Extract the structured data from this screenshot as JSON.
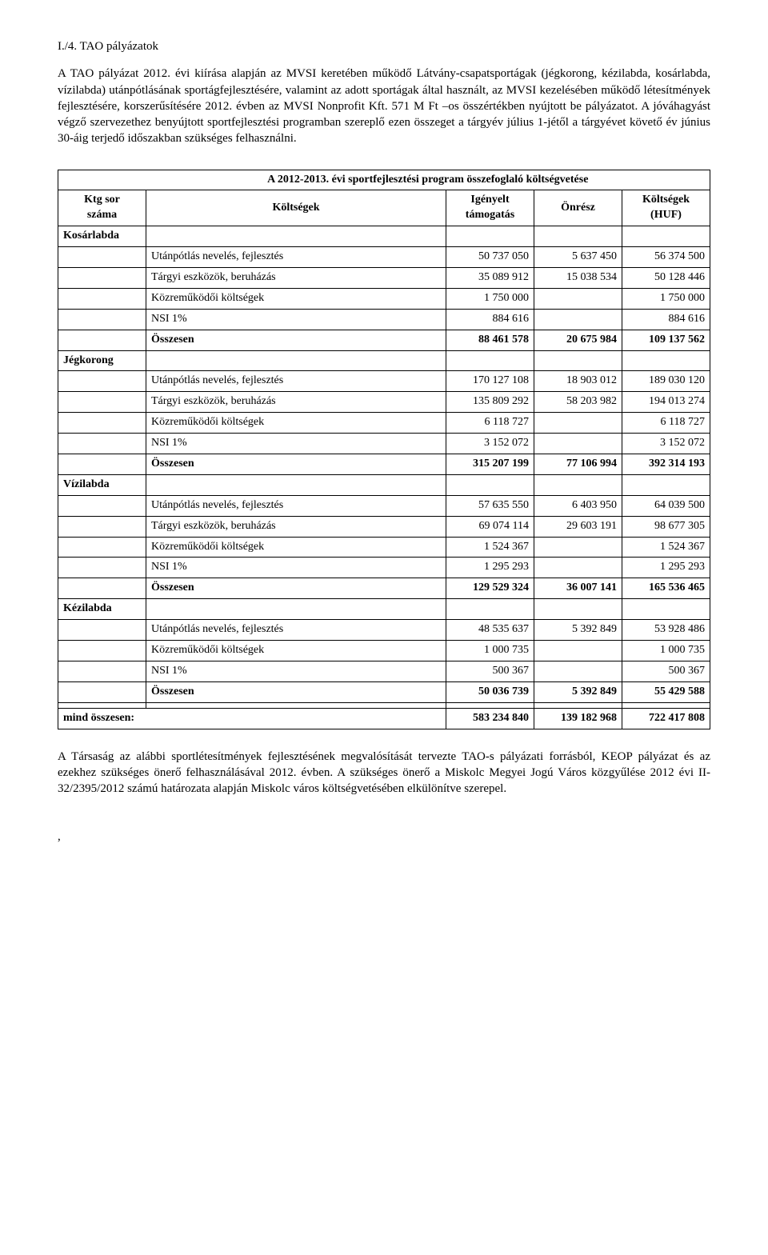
{
  "section_number": "I./4.  TAO pályázatok",
  "intro_paragraphs": [
    "A TAO pályázat 2012. évi kiírása alapján az MVSI keretében működő Látvány-csapatsportágak (jégkorong, kézilabda, kosárlabda, vízilabda) utánpótlásának sportágfejlesztésére, valamint az adott sportágak által használt, az  MVSI kezelésében működő létesítmények fejlesztésére, korszerűsítésére 2012. évben az MVSI Nonprofit Kft. 571 M Ft –os összértékben nyújtott be pályázatot. A jóváhagyást végző szervezethez benyújtott sportfejlesztési programban szereplő ezen összeget a tárgyév július 1-jétől a tárgyévet követő év június 30-áig terjedő időszakban szükséges felhasználni."
  ],
  "table": {
    "title": "A 2012-2013. évi sportfejlesztési program összefoglaló költségvetése",
    "col_first_header_line1": "Ktg sor",
    "col_first_header_line2": "száma",
    "col_headers": [
      "Költségek",
      "Igényelt támogatás",
      "Önrész",
      "Költségek (HUF)"
    ],
    "sports": [
      {
        "name": "Kosárlabda",
        "rows": [
          {
            "label": "Utánpótlás nevelés, fejlesztés",
            "v1": "50 737 050",
            "v2": "5 637 450",
            "v3": "56 374 500"
          },
          {
            "label": "Tárgyi eszközök, beruházás",
            "v1": "35 089 912",
            "v2": "15 038 534",
            "v3": "50 128 446"
          },
          {
            "label": "Közreműködői költségek",
            "v1": "1 750 000",
            "v2": "",
            "v3": "1 750 000"
          },
          {
            "label": "NSI 1%",
            "v1": "884 616",
            "v2": "",
            "v3": "884 616"
          }
        ],
        "summary": {
          "label": "Összesen",
          "v1": "88 461 578",
          "v2": "20 675 984",
          "v3": "109 137 562"
        }
      },
      {
        "name": "Jégkorong",
        "rows": [
          {
            "label": "Utánpótlás nevelés, fejlesztés",
            "v1": "170 127 108",
            "v2": "18 903 012",
            "v3": "189 030 120"
          },
          {
            "label": "Tárgyi eszközök, beruházás",
            "v1": "135 809 292",
            "v2": "58 203 982",
            "v3": "194 013 274"
          },
          {
            "label": "Közreműködői költségek",
            "v1": "6 118 727",
            "v2": "",
            "v3": "6 118 727"
          },
          {
            "label": "NSI 1%",
            "v1": "3 152 072",
            "v2": "",
            "v3": "3 152 072"
          }
        ],
        "summary": {
          "label": "Összesen",
          "v1": "315 207 199",
          "v2": "77 106 994",
          "v3": "392 314 193"
        }
      },
      {
        "name": "Vízilabda",
        "rows": [
          {
            "label": "Utánpótlás nevelés, fejlesztés",
            "v1": "57 635 550",
            "v2": "6 403 950",
            "v3": "64 039 500"
          },
          {
            "label": "Tárgyi eszközök, beruházás",
            "v1": "69 074 114",
            "v2": "29 603 191",
            "v3": "98 677 305"
          },
          {
            "label": "Közreműködői költségek",
            "v1": "1 524 367",
            "v2": "",
            "v3": "1 524 367"
          },
          {
            "label": "NSI 1%",
            "v1": "1 295 293",
            "v2": "",
            "v3": "1 295 293"
          }
        ],
        "summary": {
          "label": "Összesen",
          "v1": "129 529 324",
          "v2": "36 007 141",
          "v3": "165 536 465"
        }
      },
      {
        "name": "Kézilabda",
        "rows": [
          {
            "label": "Utánpótlás nevelés, fejlesztés",
            "v1": "48 535 637",
            "v2": "5 392 849",
            "v3": "53 928 486"
          },
          {
            "label": "Közreműködői költségek",
            "v1": "1 000 735",
            "v2": "",
            "v3": "1 000 735"
          },
          {
            "label": "NSI 1%",
            "v1": "500 367",
            "v2": "",
            "v3": "500 367"
          }
        ],
        "summary": {
          "label": "Összesen",
          "v1": "50 036 739",
          "v2": "5 392 849",
          "v3": "55 429 588"
        }
      }
    ],
    "grand_total": {
      "label": "mind összesen:",
      "v1": "583 234 840",
      "v2": "139 182 968",
      "v3": "722 417 808"
    }
  },
  "closing_paragraph": "A Társaság az alábbi sportlétesítmények fejlesztésének megvalósítását tervezte TAO-s pályázati forrásból, KEOP pályázat és az ezekhez szükséges önerő felhasználásával 2012. évben. A szükséges önerő a Miskolc Megyei Jogú Város közgyűlése 2012 évi II-32/2395/2012 számú határozata alapján Miskolc város költségvetésében elkülönítve szerepel.",
  "trailing_comma": ","
}
